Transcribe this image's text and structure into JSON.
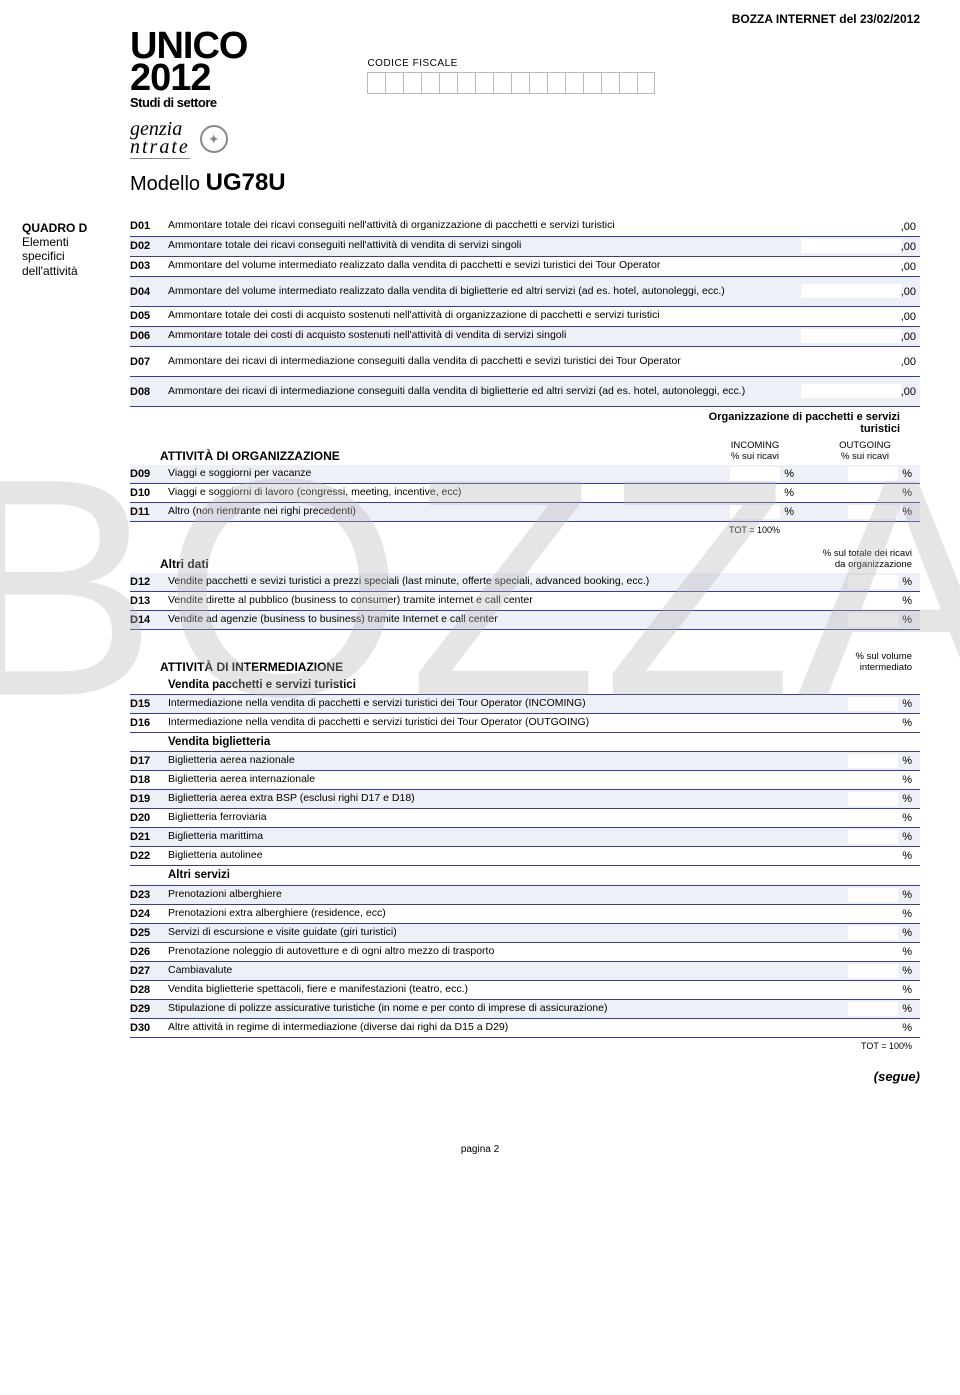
{
  "header": {
    "draft_label": "BOZZA INTERNET del 23/02/2012",
    "unico": "UNICO",
    "year": "2012",
    "studi": "Studi di settore",
    "cf_label": "CODICE FISCALE",
    "agenzia_top": "genzia",
    "agenzia_bot": "ntrate",
    "modello_label": "Modello",
    "modello_code": "UG78U"
  },
  "watermark": "BOZZA",
  "sidebar": {
    "quadro": "QUADRO D",
    "line1": "Elementi",
    "line2": "specifici",
    "line3": "dell'attività"
  },
  "amounts_suffix": ",00",
  "rows_top": [
    {
      "code": "D01",
      "desc": "Ammontare totale dei ricavi conseguiti nell'attività di organizzazione di pacchetti e servizi turistici"
    },
    {
      "code": "D02",
      "desc": "Ammontare totale dei ricavi conseguiti nell'attività di vendita di servizi singoli"
    },
    {
      "code": "D03",
      "desc": "Ammontare del volume intermediato realizzato dalla vendita di pacchetti e sevizi turistici dei Tour Operator"
    },
    {
      "code": "D04",
      "desc": "Ammontare del volume intermediato realizzato dalla vendita di biglietterie ed altri servizi (ad es. hotel, autonoleggi, ecc.)"
    },
    {
      "code": "D05",
      "desc": "Ammontare totale dei costi di acquisto sostenuti nell'attività di organizzazione di pacchetti e servizi turistici"
    },
    {
      "code": "D06",
      "desc": "Ammontare totale dei costi di acquisto sostenuti nell'attività di vendita di servizi singoli"
    },
    {
      "code": "D07",
      "desc": "Ammontare dei ricavi di intermediazione conseguiti dalla vendita di pacchetti e sevizi turistici dei Tour Operator"
    },
    {
      "code": "D08",
      "desc": "Ammontare dei ricavi di intermediazione conseguiti dalla vendita di biglietterie ed altri servizi (ad es. hotel, autonoleggi, ecc.)"
    }
  ],
  "org_section": {
    "group_title": "Organizzazione di pacchetti e servizi turistici",
    "heading": "ATTIVITÀ DI ORGANIZZAZIONE",
    "col1_top": "INCOMING",
    "col1_sub": "% sui ricavi",
    "col2_top": "OUTGOING",
    "col2_sub": "% sui ricavi",
    "rows": [
      {
        "code": "D09",
        "desc": "Viaggi e soggiorni per vacanze"
      },
      {
        "code": "D10",
        "desc": "Viaggi e soggiorni di lavoro (congressi, meeting, incentive, ecc)"
      },
      {
        "code": "D11",
        "desc": "Altro (non rientrante nei righi precedenti)"
      }
    ],
    "tot": "TOT = 100%"
  },
  "altri_dati": {
    "heading": "Altri dati",
    "col_head_1": "% sul totale dei ricavi",
    "col_head_2": "da organizzazione",
    "rows": [
      {
        "code": "D12",
        "desc": "Vendite pacchetti e sevizi turistici a prezzi speciali (last minute, offerte speciali, advanced booking, ecc.)"
      },
      {
        "code": "D13",
        "desc": "Vendite dirette al pubblico (business to consumer) tramite internet e call center"
      },
      {
        "code": "D14",
        "desc": "Vendite ad agenzie (business to business) tramite Internet e call center"
      }
    ]
  },
  "intermed": {
    "heading": "ATTIVITÀ DI INTERMEDIAZIONE",
    "col_head_1": "% sul volume",
    "col_head_2": "intermediato",
    "groups": [
      {
        "sub": "Vendita pacchetti e servizi turistici",
        "rows": [
          {
            "code": "D15",
            "desc": "Intermediazione nella vendita di pacchetti e servizi turistici dei Tour Operator (INCOMING)"
          },
          {
            "code": "D16",
            "desc": "Intermediazione nella vendita di pacchetti e servizi turistici dei Tour Operator (OUTGOING)"
          }
        ]
      },
      {
        "sub": "Vendita biglietteria",
        "rows": [
          {
            "code": "D17",
            "desc": "Biglietteria aerea nazionale"
          },
          {
            "code": "D18",
            "desc": "Biglietteria aerea internazionale"
          },
          {
            "code": "D19",
            "desc": "Biglietteria aerea extra BSP (esclusi righi D17 e D18)"
          },
          {
            "code": "D20",
            "desc": "Biglietteria ferroviaria"
          },
          {
            "code": "D21",
            "desc": "Biglietteria marittima"
          },
          {
            "code": "D22",
            "desc": "Biglietteria autolinee"
          }
        ]
      },
      {
        "sub": "Altri servizi",
        "rows": [
          {
            "code": "D23",
            "desc": "Prenotazioni alberghiere"
          },
          {
            "code": "D24",
            "desc": "Prenotazioni extra alberghiere (residence, ecc)"
          },
          {
            "code": "D25",
            "desc": "Servizi di escursione e visite guidate (giri turistici)"
          },
          {
            "code": "D26",
            "desc": "Prenotazione noleggio di autovetture e di ogni altro mezzo di trasporto"
          },
          {
            "code": "D27",
            "desc": "Cambiavalute"
          },
          {
            "code": "D28",
            "desc": "Vendita biglietterie spettacoli, fiere e manifestazioni (teatro, ecc.)"
          },
          {
            "code": "D29",
            "desc": "Stipulazione di polizze assicurative turistiche (in nome e per conto di imprese di assicurazione)"
          },
          {
            "code": "D30",
            "desc": "Altre attività in regime di intermediazione (diverse dai righi da D15 a D29)"
          }
        ]
      }
    ],
    "tot": "TOT = 100%"
  },
  "segue": "(segue)",
  "footer": "pagina 2",
  "pct_sign": "%"
}
